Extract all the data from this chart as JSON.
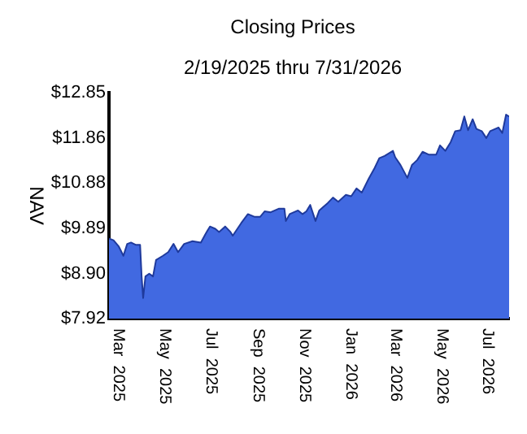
{
  "chart_data": {
    "type": "area",
    "title": "Closing Prices",
    "subtitle": "2/19/2025 thru 7/31/2026",
    "ylabel": "NAV",
    "x": [
      "2025-02-19",
      "2025-02-25",
      "2025-03-04",
      "2025-03-10",
      "2025-03-15",
      "2025-03-20",
      "2025-03-26",
      "2025-04-01",
      "2025-04-03",
      "2025-04-05",
      "2025-04-08",
      "2025-04-13",
      "2025-04-18",
      "2025-04-22",
      "2025-05-01",
      "2025-05-08",
      "2025-05-15",
      "2025-05-21",
      "2025-05-29",
      "2025-06-09",
      "2025-06-20",
      "2025-06-27",
      "2025-07-02",
      "2025-07-09",
      "2025-07-14",
      "2025-07-22",
      "2025-07-29",
      "2025-08-01",
      "2025-08-12",
      "2025-08-21",
      "2025-08-30",
      "2025-09-06",
      "2025-09-12",
      "2025-09-20",
      "2025-10-01",
      "2025-10-08",
      "2025-10-10",
      "2025-10-15",
      "2025-10-26",
      "2025-11-01",
      "2025-11-06",
      "2025-11-11",
      "2025-11-18",
      "2025-11-23",
      "2025-12-04",
      "2025-12-11",
      "2025-12-18",
      "2025-12-28",
      "2026-01-04",
      "2026-01-11",
      "2026-01-18",
      "2026-01-27",
      "2026-02-04",
      "2026-02-10",
      "2026-02-17",
      "2026-02-28",
      "2026-03-03",
      "2026-03-10",
      "2026-03-19",
      "2026-03-25",
      "2026-04-01",
      "2026-04-08",
      "2026-04-16",
      "2026-04-26",
      "2026-05-01",
      "2026-05-08",
      "2026-05-15",
      "2026-05-21",
      "2026-05-28",
      "2026-06-02",
      "2026-06-07",
      "2026-06-13",
      "2026-06-18",
      "2026-06-25",
      "2026-07-01",
      "2026-07-06",
      "2026-07-17",
      "2026-07-22",
      "2026-07-27",
      "2026-07-31"
    ],
    "series": [
      {
        "color": "#4169e1",
        "values": [
          9.67,
          9.63,
          9.49,
          9.29,
          9.55,
          9.58,
          9.53,
          9.53,
          8.84,
          8.37,
          8.84,
          8.9,
          8.84,
          9.2,
          9.29,
          9.37,
          9.55,
          9.37,
          9.55,
          9.61,
          9.58,
          9.79,
          9.93,
          9.88,
          9.81,
          9.93,
          9.81,
          9.73,
          10.0,
          10.2,
          10.14,
          10.14,
          10.26,
          10.24,
          10.32,
          10.32,
          10.05,
          10.2,
          10.28,
          10.2,
          10.26,
          10.4,
          10.05,
          10.28,
          10.44,
          10.56,
          10.47,
          10.62,
          10.59,
          10.76,
          10.67,
          10.97,
          11.21,
          11.42,
          11.47,
          11.58,
          11.44,
          11.27,
          10.99,
          11.27,
          11.38,
          11.56,
          11.5,
          11.5,
          11.7,
          11.58,
          11.77,
          12.01,
          12.03,
          12.33,
          12.03,
          12.27,
          12.06,
          12.01,
          11.86,
          12.01,
          12.09,
          11.97,
          12.37,
          12.33
        ]
      }
    ],
    "xlim": [
      "2025-02-19",
      "2026-07-31"
    ],
    "xticks": [
      {
        "value": "2025-03-01",
        "label": "Mar 2025"
      },
      {
        "value": "2025-05-01",
        "label": "May 2025"
      },
      {
        "value": "2025-07-01",
        "label": "Jul 2025"
      },
      {
        "value": "2025-09-01",
        "label": "Sep 2025"
      },
      {
        "value": "2025-11-01",
        "label": "Nov 2025"
      },
      {
        "value": "2026-01-01",
        "label": "Jan 2026"
      },
      {
        "value": "2026-03-01",
        "label": "Mar 2026"
      },
      {
        "value": "2026-05-01",
        "label": "May 2026"
      },
      {
        "value": "2026-07-01",
        "label": "Jul 2026"
      }
    ],
    "ylim": [
      7.92,
      12.85
    ],
    "yticks": [
      {
        "value": 7.92,
        "label": "$7.92"
      },
      {
        "value": 8.9,
        "label": "$8.90"
      },
      {
        "value": 9.89,
        "label": "$9.89"
      },
      {
        "value": 10.88,
        "label": "$10.88"
      },
      {
        "value": 11.86,
        "label": "$11.86"
      },
      {
        "value": 12.85,
        "label": "$12.85"
      }
    ],
    "grid": false,
    "legend": false
  }
}
